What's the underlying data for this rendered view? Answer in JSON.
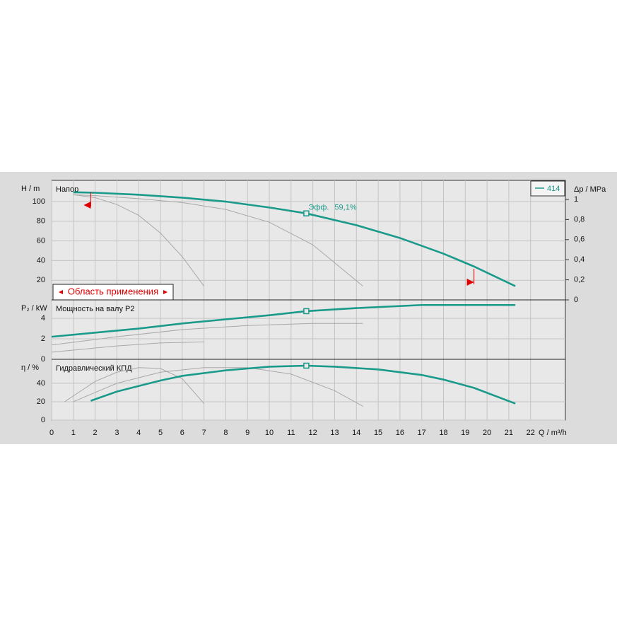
{
  "chart_data": [
    {
      "type": "line",
      "panel_label": "Напор",
      "ylabel": "H / m",
      "y2label": "Δp / MPa",
      "ylim": [
        0,
        121.6
      ],
      "yticks": [
        20,
        40,
        60,
        80,
        100
      ],
      "y2lim": [
        0,
        1.19
      ],
      "y2ticks": [
        0,
        {
          "value": 0.2,
          "label": "0,2"
        },
        {
          "value": 0.4,
          "label": "0,4"
        },
        {
          "value": 0.6,
          "label": "0,6"
        },
        {
          "value": 0.8,
          "label": "0,8"
        },
        1
      ],
      "range_label": "Область применения",
      "range": [
        1.8,
        19.4
      ],
      "annotation": {
        "text": "Эфф.",
        "value": 59.1,
        "label": "59,1%"
      },
      "duty_point": {
        "x": 11.7,
        "y": 88
      },
      "series": [
        {
          "name": "414",
          "color": "#1a9a8a",
          "x": [
            1,
            2,
            4,
            6,
            8,
            10,
            11.7,
            14,
            16,
            18,
            19.4,
            21.3
          ],
          "values": [
            109.5,
            109,
            107,
            104,
            100,
            94,
            88,
            76,
            63,
            47,
            34,
            14
          ]
        },
        {
          "color": "#a8a8a8",
          "x": [
            1,
            2,
            3,
            4,
            5,
            6,
            7
          ],
          "values": [
            107,
            104,
            97,
            86,
            68,
            44,
            14
          ]
        },
        {
          "color": "#a8a8a8",
          "x": [
            1,
            2,
            4,
            6,
            8,
            10,
            12,
            14.3
          ],
          "values": [
            107,
            106,
            103,
            99,
            92,
            79,
            56,
            14
          ]
        }
      ]
    },
    {
      "type": "line",
      "panel_label": "Мощность на валу P2",
      "ylabel": "P₂ / kW",
      "ylim": [
        0,
        5.8
      ],
      "yticks": [
        0,
        2,
        4
      ],
      "duty_point": {
        "x": 11.7,
        "y": 4.7
      },
      "series": [
        {
          "color": "#1a9a8a",
          "x": [
            0,
            2,
            4,
            6,
            8,
            10,
            11.7,
            14,
            17,
            21.3
          ],
          "values": [
            2.2,
            2.6,
            3.0,
            3.5,
            3.9,
            4.3,
            4.7,
            5.0,
            5.3,
            5.3
          ]
        },
        {
          "color": "#a8a8a8",
          "x": [
            0,
            3,
            5,
            7
          ],
          "values": [
            0.7,
            1.3,
            1.6,
            1.7
          ]
        },
        {
          "color": "#a8a8a8",
          "x": [
            0,
            3,
            6,
            9,
            12,
            14.3
          ],
          "values": [
            1.4,
            2.2,
            2.9,
            3.3,
            3.5,
            3.5
          ]
        }
      ]
    },
    {
      "type": "line",
      "panel_label": "Гидравлический КПД",
      "ylabel": "η / %",
      "xlabel": "Q / m³/h",
      "ylim": [
        0,
        66
      ],
      "yticks": [
        0,
        20,
        40
      ],
      "xlim": [
        0,
        23.6
      ],
      "xticks": [
        0,
        1,
        2,
        3,
        4,
        5,
        6,
        7,
        8,
        9,
        10,
        11,
        12,
        13,
        14,
        15,
        16,
        17,
        18,
        19,
        20,
        21,
        22
      ],
      "duty_point": {
        "x": 11.7,
        "y": 59.1
      },
      "series": [
        {
          "color": "#1a9a8a",
          "x": [
            1.8,
            3,
            4,
            5,
            6,
            8,
            10,
            11.7,
            13,
            15,
            17,
            18,
            19.4,
            21.3
          ],
          "values": [
            21,
            31,
            37,
            43,
            48,
            54,
            58,
            59.1,
            58,
            55,
            49,
            44,
            35,
            18
          ]
        },
        {
          "color": "#a8a8a8",
          "x": [
            0.6,
            2,
            3,
            4,
            5,
            6,
            7
          ],
          "values": [
            20,
            42,
            52,
            57,
            56,
            45,
            18
          ]
        },
        {
          "color": "#a8a8a8",
          "x": [
            1,
            3,
            5,
            7,
            9,
            11,
            13,
            14.3
          ],
          "values": [
            20,
            40,
            52,
            57,
            57,
            50,
            32,
            15
          ]
        }
      ]
    }
  ]
}
